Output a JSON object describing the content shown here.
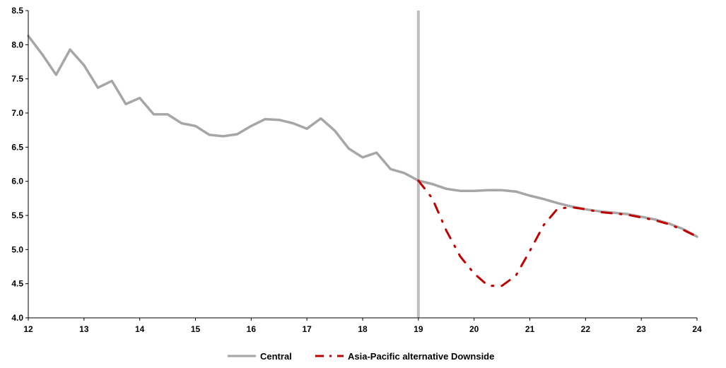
{
  "chart_data": {
    "type": "line",
    "title": "",
    "xlabel": "",
    "ylabel": "",
    "xlim": [
      12,
      24
    ],
    "ylim": [
      4.0,
      8.5
    ],
    "x_ticks": [
      "12",
      "13",
      "14",
      "15",
      "16",
      "17",
      "18",
      "19",
      "20",
      "21",
      "22",
      "23",
      "24"
    ],
    "y_ticks": [
      "4.0",
      "4.5",
      "5.0",
      "5.5",
      "6.0",
      "6.5",
      "7.0",
      "7.5",
      "8.0",
      "8.5"
    ],
    "grid": false,
    "legend_position": "bottom",
    "vertical_marker_x": 19,
    "series": [
      {
        "name": "Central",
        "color": "#a6a6a6",
        "style": "solid",
        "x": [
          12,
          12.25,
          12.5,
          12.75,
          13,
          13.25,
          13.5,
          13.75,
          14,
          14.25,
          14.5,
          14.75,
          15,
          15.25,
          15.5,
          15.75,
          16,
          16.25,
          16.5,
          16.75,
          17,
          17.25,
          17.5,
          17.75,
          18,
          18.25,
          18.5,
          18.75,
          19,
          19.25,
          19.5,
          19.75,
          20,
          20.25,
          20.5,
          20.75,
          21,
          21.25,
          21.5,
          21.75,
          22,
          22.25,
          22.5,
          22.75,
          23,
          23.25,
          23.5,
          23.75,
          24
        ],
        "values": [
          8.13,
          7.86,
          7.56,
          7.93,
          7.7,
          7.37,
          7.47,
          7.13,
          7.22,
          6.98,
          6.98,
          6.85,
          6.81,
          6.68,
          6.66,
          6.69,
          6.81,
          6.91,
          6.9,
          6.85,
          6.77,
          6.92,
          6.74,
          6.48,
          6.35,
          6.42,
          6.18,
          6.12,
          6.01,
          5.96,
          5.89,
          5.86,
          5.86,
          5.87,
          5.87,
          5.85,
          5.79,
          5.74,
          5.68,
          5.63,
          5.59,
          5.56,
          5.54,
          5.52,
          5.48,
          5.44,
          5.38,
          5.3,
          5.19
        ]
      },
      {
        "name": "Asia-Pacific alternative Downside",
        "color": "#c00000",
        "style": "dash-dot",
        "x": [
          19,
          19.25,
          19.5,
          19.75,
          20,
          20.25,
          20.5,
          20.75,
          21,
          21.25,
          21.5,
          21.75,
          22,
          22.25,
          22.5,
          22.75,
          23,
          23.25,
          23.5,
          23.75,
          24
        ],
        "values": [
          6.01,
          5.75,
          5.28,
          4.9,
          4.65,
          4.47,
          4.47,
          4.62,
          4.98,
          5.36,
          5.6,
          5.62,
          5.59,
          5.55,
          5.53,
          5.51,
          5.47,
          5.43,
          5.37,
          5.29,
          5.19
        ]
      }
    ]
  }
}
